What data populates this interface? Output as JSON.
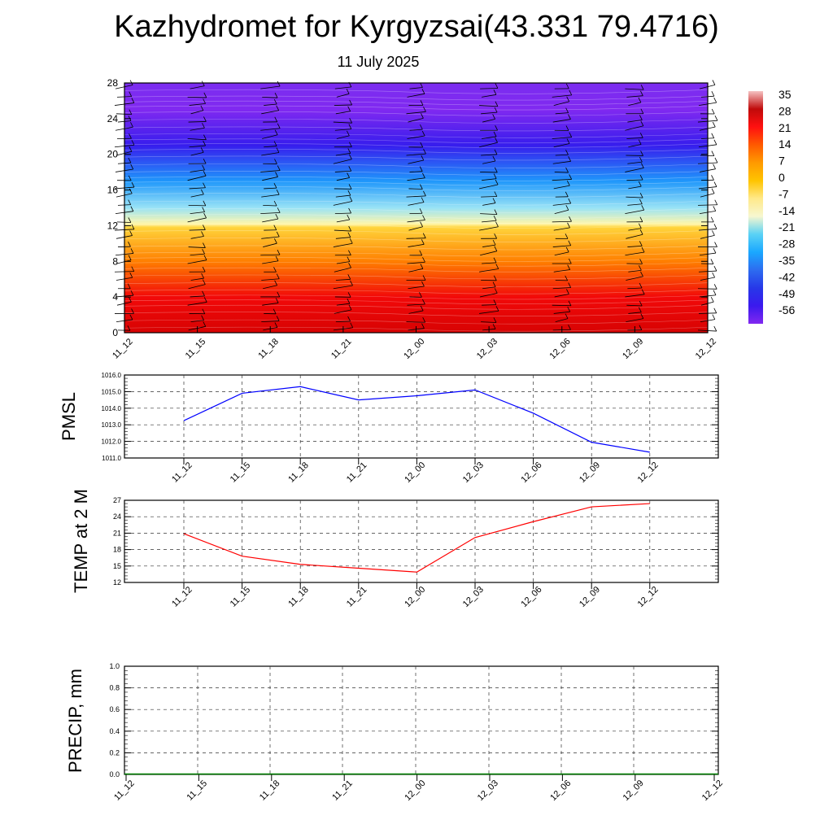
{
  "title": "Kazhydromet for Kyrgyzsai(43.331 79.4716)",
  "subtitle": "11 July 2025",
  "chart_data": [
    {
      "type": "heatmap",
      "name": "temperature-profile",
      "x_ticks": [
        "11_12",
        "11_15",
        "11_18",
        "11_21",
        "12_00",
        "12_03",
        "12_06",
        "12_09",
        "12_12"
      ],
      "y_ticks": [
        0,
        4,
        8,
        12,
        16,
        20,
        24,
        28
      ],
      "ylim": [
        0,
        28
      ],
      "colorbar_labels": [
        35,
        28,
        21,
        14,
        7,
        0,
        -7,
        -14,
        -21,
        -28,
        -35,
        -42,
        -49,
        -56
      ],
      "colorbar_colors": [
        "#f5c2c2",
        "#c00a0a",
        "#ff1010",
        "#ff5a00",
        "#ff9a00",
        "#ffc400",
        "#ffe98a",
        "#f7f7d0",
        "#5ad2f5",
        "#1aa8ff",
        "#2d6cf0",
        "#2738e8",
        "#3a19ee",
        "#8228f0"
      ],
      "temp_at_height": [
        {
          "height": 0,
          "temp": 30
        },
        {
          "height": 4,
          "temp": 24
        },
        {
          "height": 8,
          "temp": 10
        },
        {
          "height": 11.8,
          "temp": -3
        },
        {
          "height": 12.2,
          "temp": -10
        },
        {
          "height": 14,
          "temp": -18
        },
        {
          "height": 17,
          "temp": -30
        },
        {
          "height": 21,
          "temp": -48
        },
        {
          "height": 25,
          "temp": -58
        },
        {
          "height": 28,
          "temp": -65
        }
      ]
    },
    {
      "type": "line",
      "name": "pmsl",
      "ylabel": "PMSL",
      "categories": [
        "11_12",
        "11_15",
        "11_18",
        "11_21",
        "12_00",
        "12_03",
        "12_06",
        "12_09",
        "12_12"
      ],
      "y_ticks": [
        "1011.0",
        "1012.0",
        "1013.0",
        "1014.0",
        "1015.0",
        "1016.0"
      ],
      "ylim": [
        1011,
        1016
      ],
      "values": [
        1013.25,
        1014.9,
        1015.3,
        1014.5,
        1014.75,
        1015.1,
        1013.7,
        1011.95,
        1011.35
      ],
      "color": "#0000ff"
    },
    {
      "type": "line",
      "name": "temp2m",
      "ylabel": "TEMP at 2 M",
      "categories": [
        "11_12",
        "11_15",
        "11_18",
        "11_21",
        "12_00",
        "12_03",
        "12_06",
        "12_09",
        "12_12"
      ],
      "y_ticks": [
        "12",
        "15",
        "18",
        "21",
        "24",
        "27"
      ],
      "ylim": [
        12,
        27
      ],
      "values": [
        20.9,
        16.8,
        15.3,
        14.6,
        13.9,
        20.2,
        23.1,
        25.8,
        26.4
      ],
      "color": "#ff0000"
    },
    {
      "type": "line",
      "name": "precip",
      "ylabel": "PRECIP, mm",
      "categories": [
        "11_12",
        "11_15",
        "11_18",
        "11_21",
        "12_00",
        "12_03",
        "12_06",
        "12_09",
        "12_12"
      ],
      "y_ticks": [
        "0.0",
        "0.2",
        "0.4",
        "0.6",
        "0.8",
        "1.0"
      ],
      "ylim": [
        0,
        1
      ],
      "values": [
        0,
        0,
        0,
        0,
        0,
        0,
        0,
        0,
        0
      ],
      "color": "#008000"
    }
  ]
}
